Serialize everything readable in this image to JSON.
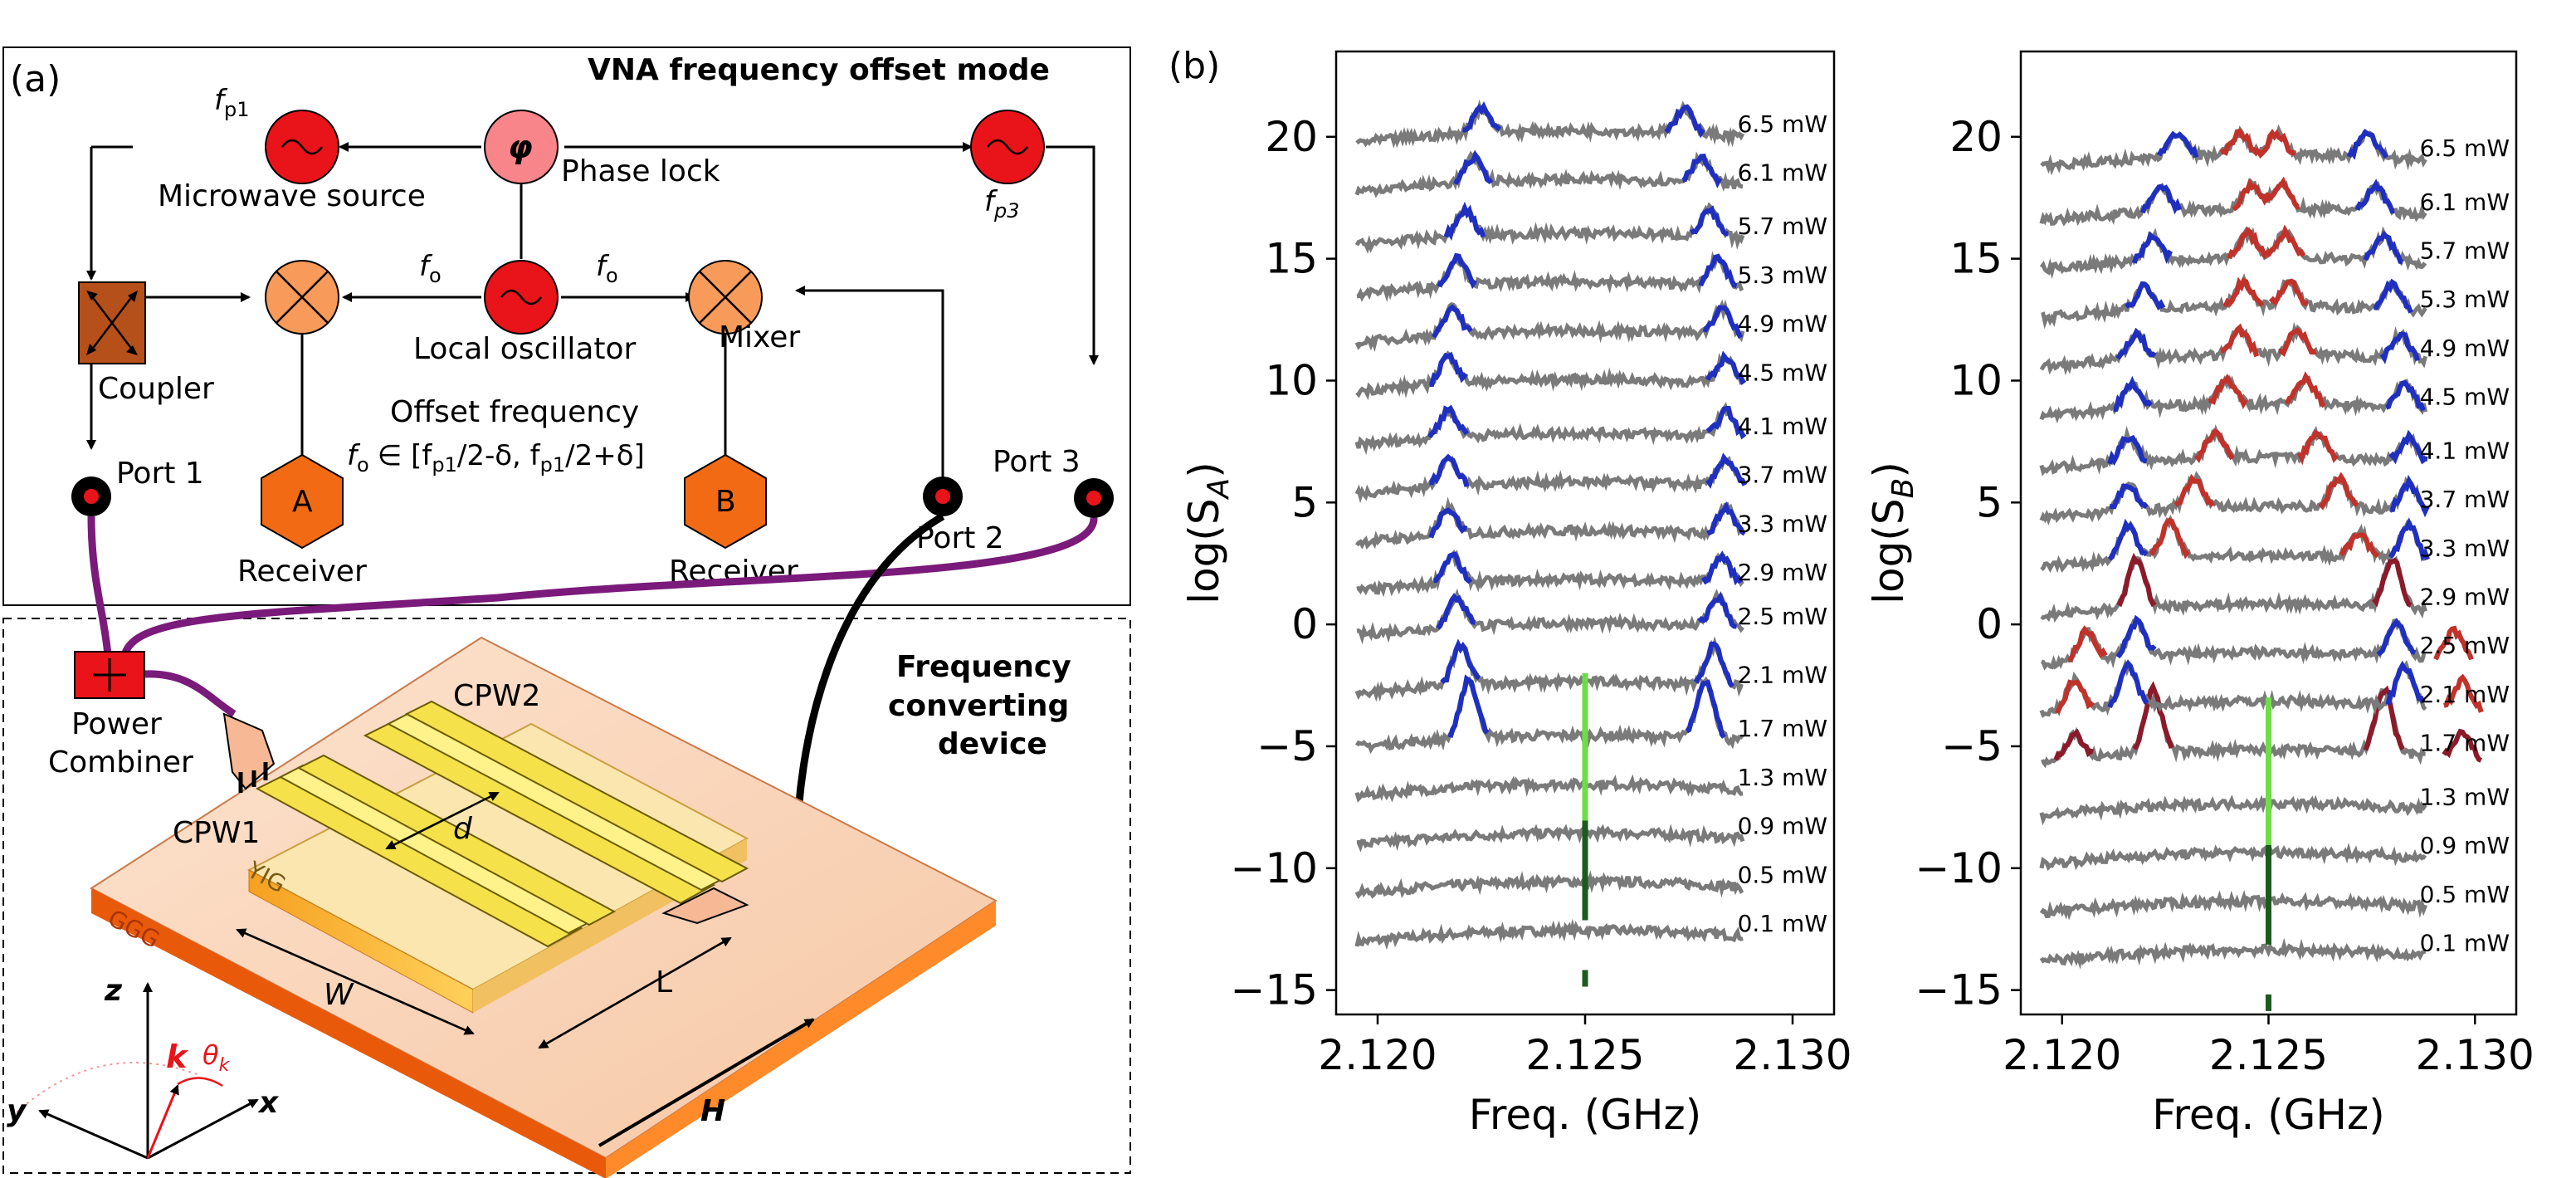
{
  "panel_a": {
    "tag": "(a)",
    "title": "VNA frequency offset mode",
    "fp1": "f",
    "fp1_sub": "p1",
    "fp3": "f",
    "fp3_sub": "p3",
    "phi": "φ",
    "phase_lock": "Phase lock",
    "microwave_source": "Microwave source",
    "fo": "f",
    "fo_sub": "o",
    "local_oscillator": "Local oscillator",
    "mixer": "Mixer",
    "coupler": "Coupler",
    "offset_frequency": "Offset frequency",
    "offset_range_tail": "∈ [f",
    "offset_range_mid1": "/2-δ, f",
    "offset_range_mid2": "/2+δ]",
    "port1": "Port 1",
    "port2": "Port 2",
    "port3": "Port 3",
    "receiver_a_letter": "A",
    "receiver_b_letter": "B",
    "receiver": "Receiver",
    "power_combiner_1": "Power",
    "power_combiner_2": "Combiner",
    "device_title_1": "Frequency",
    "device_title_2": "converting",
    "device_title_3": "device",
    "cpw1": "CPW1",
    "cpw2": "CPW2",
    "d": "d",
    "W": "W",
    "L": "L",
    "yig": "YIG",
    "ggg": "GGG",
    "axis_z": "z",
    "axis_y": "y",
    "axis_x": "x",
    "axis_k": "k",
    "theta": "θ",
    "theta_sub": "k",
    "H": "H"
  },
  "panel_b": {
    "tag": "(b)"
  },
  "colors": {
    "trace": "#7a7a7a",
    "blue": "#1f2fbf",
    "red": "#c0322a",
    "darkred": "#8b1a2a",
    "green": "#6fdc4a",
    "darkgreen": "#1d5a1d",
    "purple": "#7a1a7a",
    "orange": "#f79a5a",
    "red_source": "#e8141a"
  },
  "chart_data": [
    {
      "type": "line",
      "title": "",
      "xlabel": "Freq. (GHz)",
      "ylabel": "log(S_A)",
      "ylabel_main": "log(S",
      "ylabel_sub": "A",
      "xlim": [
        2.119,
        2.131
      ],
      "ylim": [
        -16,
        23.5
      ],
      "xticks": [
        "2.120",
        "2.125",
        "2.130"
      ],
      "xtick_values": [
        2.12,
        2.125,
        2.13
      ],
      "yticks": [
        "20",
        "15",
        "10",
        "5",
        "0",
        "−5",
        "−10",
        "−15"
      ],
      "ytick_values": [
        20,
        15,
        10,
        5,
        0,
        -5,
        -10,
        -15
      ],
      "power_labels": [
        "0.1 mW",
        "0.5 mW",
        "0.9 mW",
        "1.3 mW",
        "1.7 mW",
        "2.1 mW",
        "2.5 mW",
        "2.9 mW",
        "3.3 mW",
        "3.7 mW",
        "4.1 mW",
        "4.5 mW",
        "4.9 mW",
        "5.3 mW",
        "5.7 mW",
        "6.1 mW",
        "6.5 mW"
      ],
      "offsets": [
        -12.8,
        -10.8,
        -8.8,
        -6.8,
        -4.8,
        -2.6,
        -0.2,
        1.6,
        3.6,
        5.6,
        7.6,
        9.8,
        11.8,
        13.8,
        15.8,
        18.0,
        20.0
      ],
      "series": [
        {
          "offset": -12.8,
          "peaks": []
        },
        {
          "offset": -10.8,
          "peaks": []
        },
        {
          "offset": -8.8,
          "peaks": []
        },
        {
          "offset": -6.8,
          "peaks": []
        },
        {
          "offset": -4.8,
          "peaks": [
            {
              "x": 2.1222,
              "h": 2.4,
              "color": "blue"
            },
            {
              "x": 2.1279,
              "h": 2.4,
              "color": "blue"
            }
          ]
        },
        {
          "offset": -2.6,
          "peaks": [
            {
              "x": 2.122,
              "h": 1.6,
              "color": "blue"
            },
            {
              "x": 2.1281,
              "h": 1.6,
              "color": "blue"
            }
          ]
        },
        {
          "offset": -0.2,
          "peaks": [
            {
              "x": 2.1219,
              "h": 1.2,
              "color": "blue"
            },
            {
              "x": 2.1282,
              "h": 1.2,
              "color": "blue"
            }
          ]
        },
        {
          "offset": 1.6,
          "peaks": [
            {
              "x": 2.1218,
              "h": 1.1,
              "color": "blue"
            },
            {
              "x": 2.1283,
              "h": 1.1,
              "color": "blue"
            }
          ]
        },
        {
          "offset": 3.6,
          "peaks": [
            {
              "x": 2.1217,
              "h": 1.1,
              "color": "blue"
            },
            {
              "x": 2.1284,
              "h": 1.1,
              "color": "blue"
            }
          ]
        },
        {
          "offset": 5.6,
          "peaks": [
            {
              "x": 2.1217,
              "h": 1.1,
              "color": "blue"
            },
            {
              "x": 2.1284,
              "h": 1.1,
              "color": "blue"
            }
          ]
        },
        {
          "offset": 7.6,
          "peaks": [
            {
              "x": 2.1217,
              "h": 1.1,
              "color": "blue"
            },
            {
              "x": 2.1284,
              "h": 1.1,
              "color": "blue"
            }
          ]
        },
        {
          "offset": 9.8,
          "peaks": [
            {
              "x": 2.1217,
              "h": 1.1,
              "color": "blue"
            },
            {
              "x": 2.1284,
              "h": 1.1,
              "color": "blue"
            }
          ]
        },
        {
          "offset": 11.8,
          "peaks": [
            {
              "x": 2.1218,
              "h": 1.1,
              "color": "blue"
            },
            {
              "x": 2.1283,
              "h": 1.1,
              "color": "blue"
            }
          ]
        },
        {
          "offset": 13.8,
          "peaks": [
            {
              "x": 2.1219,
              "h": 1.1,
              "color": "blue"
            },
            {
              "x": 2.1282,
              "h": 1.1,
              "color": "blue"
            }
          ]
        },
        {
          "offset": 15.8,
          "peaks": [
            {
              "x": 2.1221,
              "h": 1.1,
              "color": "blue"
            },
            {
              "x": 2.128,
              "h": 1.1,
              "color": "blue"
            }
          ]
        },
        {
          "offset": 18.0,
          "peaks": [
            {
              "x": 2.1223,
              "h": 1.0,
              "color": "blue"
            },
            {
              "x": 2.1278,
              "h": 1.0,
              "color": "blue"
            }
          ]
        },
        {
          "offset": 20.0,
          "peaks": [
            {
              "x": 2.1225,
              "h": 1.0,
              "color": "blue"
            },
            {
              "x": 2.1274,
              "h": 1.0,
              "color": "blue"
            }
          ]
        }
      ],
      "green_marker": {
        "x": 2.125,
        "y_top": -2.0,
        "y_bottom": -13.0
      }
    },
    {
      "type": "line",
      "title": "",
      "xlabel": "Freq. (GHz)",
      "ylabel": "log(S_B)",
      "ylabel_main": "log(S",
      "ylabel_sub": "B",
      "xlim": [
        2.119,
        2.131
      ],
      "ylim": [
        -16,
        23.5
      ],
      "xticks": [
        "2.120",
        "2.125",
        "2.130"
      ],
      "xtick_values": [
        2.12,
        2.125,
        2.13
      ],
      "yticks": [
        "20",
        "15",
        "10",
        "5",
        "0",
        "−5",
        "−10",
        "−15"
      ],
      "ytick_values": [
        20,
        15,
        10,
        5,
        0,
        -5,
        -10,
        -15
      ],
      "power_labels": [
        "0.1 mW",
        "0.5 mW",
        "0.9 mW",
        "1.3 mW",
        "1.7 mW",
        "2.1 mW",
        "2.5 mW",
        "2.9 mW",
        "3.3 mW",
        "3.7 mW",
        "4.1 mW",
        "4.5 mW",
        "4.9 mW",
        "5.3 mW",
        "5.7 mW",
        "6.1 mW",
        "6.5 mW"
      ],
      "offsets": [
        -13.6,
        -11.6,
        -9.6,
        -7.6,
        -5.4,
        -3.4,
        -1.4,
        0.6,
        2.6,
        4.6,
        6.6,
        8.8,
        10.8,
        12.8,
        14.8,
        16.8,
        19.0
      ],
      "series": [
        {
          "offset": -13.6,
          "peaks": []
        },
        {
          "offset": -11.6,
          "peaks": []
        },
        {
          "offset": -9.6,
          "peaks": []
        },
        {
          "offset": -7.6,
          "peaks": []
        },
        {
          "offset": -5.4,
          "peaks": [
            {
              "x": 2.1203,
              "h": 1.0,
              "color": "darkred"
            },
            {
              "x": 2.1222,
              "h": 2.6,
              "color": "darkred"
            },
            {
              "x": 2.1278,
              "h": 2.6,
              "color": "darkred"
            },
            {
              "x": 2.1297,
              "h": 1.0,
              "color": "darkred"
            }
          ]
        },
        {
          "offset": -3.4,
          "peaks": [
            {
              "x": 2.1203,
              "h": 1.2,
              "color": "red"
            },
            {
              "x": 2.1216,
              "h": 1.6,
              "color": "blue"
            },
            {
              "x": 2.1283,
              "h": 1.6,
              "color": "blue"
            },
            {
              "x": 2.1297,
              "h": 1.2,
              "color": "red"
            }
          ]
        },
        {
          "offset": -1.4,
          "peaks": [
            {
              "x": 2.1206,
              "h": 1.2,
              "color": "red"
            },
            {
              "x": 2.1218,
              "h": 1.4,
              "color": "blue"
            },
            {
              "x": 2.1281,
              "h": 1.4,
              "color": "blue"
            },
            {
              "x": 2.1295,
              "h": 1.2,
              "color": "red"
            }
          ]
        },
        {
          "offset": 0.6,
          "peaks": [
            {
              "x": 2.1218,
              "h": 2.0,
              "color": "darkred"
            },
            {
              "x": 2.128,
              "h": 2.0,
              "color": "darkred"
            }
          ]
        },
        {
          "offset": 2.6,
          "peaks": [
            {
              "x": 2.1216,
              "h": 1.4,
              "color": "blue"
            },
            {
              "x": 2.1226,
              "h": 1.4,
              "color": "red"
            },
            {
              "x": 2.1272,
              "h": 1.0,
              "color": "red"
            },
            {
              "x": 2.1284,
              "h": 1.4,
              "color": "blue"
            }
          ]
        },
        {
          "offset": 4.6,
          "peaks": [
            {
              "x": 2.1216,
              "h": 1.1,
              "color": "blue"
            },
            {
              "x": 2.1232,
              "h": 1.2,
              "color": "red"
            },
            {
              "x": 2.1267,
              "h": 1.2,
              "color": "red"
            },
            {
              "x": 2.1284,
              "h": 1.1,
              "color": "blue"
            }
          ]
        },
        {
          "offset": 6.6,
          "peaks": [
            {
              "x": 2.1216,
              "h": 1.0,
              "color": "blue"
            },
            {
              "x": 2.1237,
              "h": 1.0,
              "color": "red"
            },
            {
              "x": 2.1262,
              "h": 1.0,
              "color": "red"
            },
            {
              "x": 2.1284,
              "h": 1.0,
              "color": "blue"
            }
          ]
        },
        {
          "offset": 8.8,
          "peaks": [
            {
              "x": 2.1217,
              "h": 1.0,
              "color": "blue"
            },
            {
              "x": 2.124,
              "h": 1.0,
              "color": "red"
            },
            {
              "x": 2.1259,
              "h": 1.0,
              "color": "red"
            },
            {
              "x": 2.1283,
              "h": 1.0,
              "color": "blue"
            }
          ]
        },
        {
          "offset": 10.8,
          "peaks": [
            {
              "x": 2.1218,
              "h": 1.0,
              "color": "blue"
            },
            {
              "x": 2.1243,
              "h": 1.0,
              "color": "red"
            },
            {
              "x": 2.1257,
              "h": 1.0,
              "color": "red"
            },
            {
              "x": 2.1282,
              "h": 1.0,
              "color": "blue"
            }
          ]
        },
        {
          "offset": 12.8,
          "peaks": [
            {
              "x": 2.122,
              "h": 1.0,
              "color": "blue"
            },
            {
              "x": 2.1244,
              "h": 1.0,
              "color": "red"
            },
            {
              "x": 2.1255,
              "h": 1.0,
              "color": "red"
            },
            {
              "x": 2.128,
              "h": 1.0,
              "color": "blue"
            }
          ]
        },
        {
          "offset": 14.8,
          "peaks": [
            {
              "x": 2.1222,
              "h": 1.0,
              "color": "blue"
            },
            {
              "x": 2.1245,
              "h": 1.0,
              "color": "red"
            },
            {
              "x": 2.1254,
              "h": 1.0,
              "color": "red"
            },
            {
              "x": 2.1278,
              "h": 1.0,
              "color": "blue"
            }
          ]
        },
        {
          "offset": 16.8,
          "peaks": [
            {
              "x": 2.1224,
              "h": 1.0,
              "color": "blue"
            },
            {
              "x": 2.1246,
              "h": 1.0,
              "color": "red"
            },
            {
              "x": 2.1253,
              "h": 1.0,
              "color": "red"
            },
            {
              "x": 2.1276,
              "h": 1.0,
              "color": "blue"
            }
          ]
        },
        {
          "offset": 19.0,
          "peaks": [
            {
              "x": 2.1228,
              "h": 1.0,
              "color": "blue"
            },
            {
              "x": 2.1243,
              "h": 0.9,
              "color": "red"
            },
            {
              "x": 2.1252,
              "h": 0.9,
              "color": "red"
            },
            {
              "x": 2.1274,
              "h": 1.0,
              "color": "blue"
            }
          ]
        }
      ],
      "green_marker": {
        "x": 2.125,
        "y_top": -3.0,
        "y_bottom": -14.0
      }
    }
  ]
}
